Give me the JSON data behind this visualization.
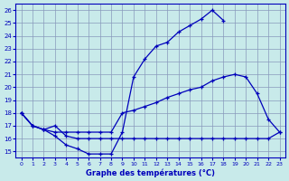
{
  "title": "Graphe des températures (°C)",
  "background_color": "#c8eaea",
  "grid_color": "#8899bb",
  "line_color": "#0000bb",
  "xlim": [
    -0.5,
    23.5
  ],
  "ylim": [
    14.5,
    26.5
  ],
  "xticks": [
    0,
    1,
    2,
    3,
    4,
    5,
    6,
    7,
    8,
    9,
    10,
    11,
    12,
    13,
    14,
    15,
    16,
    17,
    18,
    19,
    20,
    21,
    22,
    23
  ],
  "yticks": [
    15,
    16,
    17,
    18,
    19,
    20,
    21,
    22,
    23,
    24,
    25,
    26
  ],
  "series1_y": [
    18.0,
    17.0,
    16.7,
    16.2,
    15.5,
    15.2,
    14.8,
    14.8,
    14.8,
    16.5,
    20.8,
    22.2,
    23.2,
    23.5,
    24.3,
    24.8,
    25.3,
    26.0,
    25.2,
    null,
    null,
    null,
    null,
    null
  ],
  "series2_y": [
    18.0,
    17.0,
    16.7,
    17.0,
    16.2,
    16.0,
    16.0,
    16.0,
    16.0,
    16.0,
    16.0,
    16.0,
    16.0,
    16.0,
    16.0,
    16.0,
    16.0,
    16.0,
    16.0,
    16.0,
    16.0,
    16.0,
    16.0,
    16.5
  ],
  "series3_y": [
    18.0,
    17.0,
    16.7,
    16.5,
    16.5,
    16.5,
    16.5,
    16.5,
    16.5,
    18.0,
    18.2,
    18.5,
    18.8,
    19.2,
    19.5,
    19.8,
    20.0,
    20.5,
    20.8,
    21.0,
    20.8,
    19.5,
    17.5,
    16.5
  ]
}
